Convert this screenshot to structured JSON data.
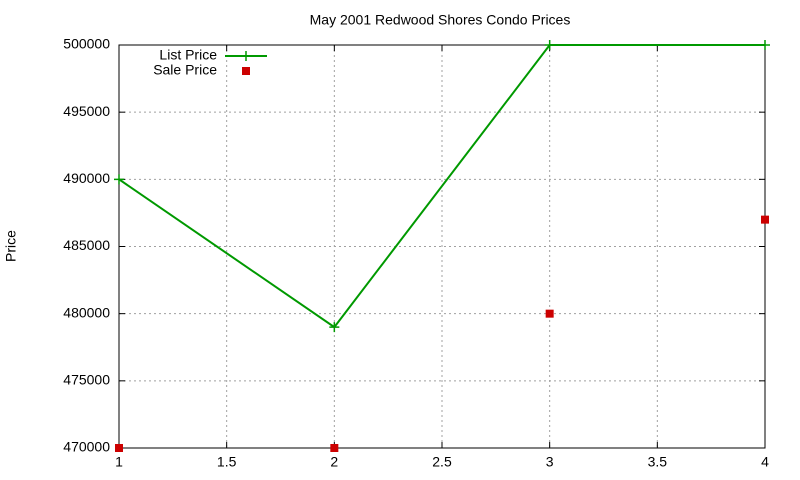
{
  "chart_data": {
    "type": "line",
    "title": "May 2001 Redwood Shores Condo Prices",
    "y_label": "Price",
    "x": [
      1,
      2,
      3,
      4
    ],
    "series": [
      {
        "name": "List Price",
        "color": "#009900",
        "mode": "lines+markers",
        "values": [
          490000,
          479000,
          500000,
          500000
        ]
      },
      {
        "name": "Sale Price",
        "color": "#cc0000",
        "mode": "markers",
        "values": [
          470000,
          470000,
          480000,
          487000
        ]
      }
    ],
    "xlim": [
      1,
      4
    ],
    "xticks": [
      1,
      1.5,
      2,
      2.5,
      3,
      3.5,
      4
    ],
    "ylim": [
      470000,
      500000
    ],
    "yticks": [
      470000,
      475000,
      480000,
      485000,
      490000,
      495000,
      500000
    ],
    "grid": true,
    "legend": "top-left"
  }
}
